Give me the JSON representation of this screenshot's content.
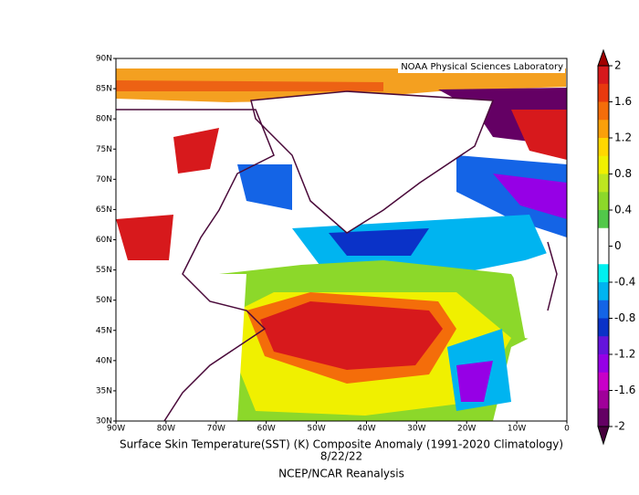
{
  "map": {
    "credit": "NOAA Physical Sciences Laboratory",
    "title": "Surface Skin Temperature(SST) (K) Composite Anomaly (1991-2020 Climatology)",
    "date": "8/22/22",
    "source": "NCEP/NCAR Reanalysis",
    "lat_labels": [
      "90N",
      "85N",
      "80N",
      "75N",
      "70N",
      "65N",
      "60N",
      "55N",
      "50N",
      "45N",
      "40N",
      "35N",
      "30N"
    ],
    "lon_labels": [
      "90W",
      "80W",
      "70W",
      "60W",
      "50W",
      "40W",
      "30W",
      "20W",
      "10W",
      "0"
    ],
    "colorbar": {
      "range": [
        -2,
        2
      ],
      "ticks": [
        2,
        1.6,
        1.2,
        0.8,
        0.4,
        0,
        -0.4,
        -0.8,
        -1.2,
        -1.6,
        -2
      ],
      "colors": [
        "#d7191c",
        "#e8390e",
        "#f46d0a",
        "#faa00a",
        "#ffd700",
        "#f0f000",
        "#bde620",
        "#8cd82a",
        "#52c84a",
        "#ffffff",
        "#ffffff",
        "#00f0f0",
        "#00b4f0",
        "#1464e6",
        "#0a32c8",
        "#6414dc",
        "#9600e6",
        "#c800c8",
        "#a0009a",
        "#640064"
      ],
      "over": "#a00000",
      "under": "#46003c"
    }
  }
}
